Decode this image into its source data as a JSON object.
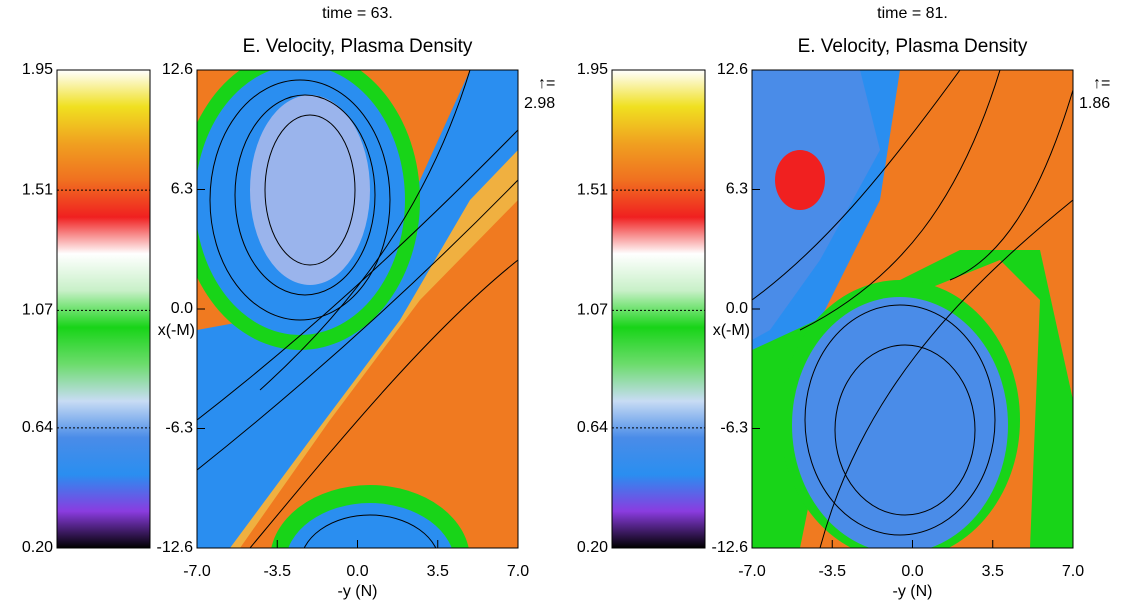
{
  "chart_data": [
    {
      "type": "heatmap",
      "title": "time =  63.",
      "subtitle": "E. Velocity, Plasma Density",
      "x_label": "-y (N)",
      "y_label": "x(-M)",
      "vector_label": "↑=",
      "vector_scale": "2.98",
      "xlim": [
        -7,
        7
      ],
      "ylim": [
        -12.6,
        12.6
      ],
      "xticks": [
        {
          "value": -7,
          "label": "-7.0"
        },
        -3.5,
        {
          "value": 0,
          "label": "0.0"
        },
        3.5,
        {
          "value": 7,
          "label": "7.0"
        }
      ],
      "yticks": [
        -12.6,
        -6.3,
        {
          "value": 0,
          "label": "0.0"
        },
        6.3,
        12.6
      ],
      "colorbar_lim": [
        0.2,
        1.95
      ],
      "colorbar_ticks": [
        {
          "value": 0.2,
          "label": "0.20"
        },
        0.64,
        1.07,
        1.51,
        1.95
      ],
      "colormap": [
        "#000000",
        "#8a3ce0",
        "#2a8ef0",
        "#4a8ce8",
        "#c8dcf4",
        "#6cdc6c",
        "#18d418",
        "#c8f0c8",
        "#ffffff",
        "#f02020",
        "#f07020",
        "#f0a020",
        "#f0e020",
        "#ffffff"
      ]
    },
    {
      "type": "heatmap",
      "title": "time =  81.",
      "subtitle": "E. Velocity, Plasma Density",
      "x_label": "-y (N)",
      "y_label": "x(-M)",
      "vector_label": "↑=",
      "vector_scale": "1.86",
      "xlim": [
        -7,
        7
      ],
      "ylim": [
        -12.6,
        12.6
      ],
      "xticks": [
        {
          "value": -7,
          "label": "-7.0"
        },
        -3.5,
        {
          "value": 0,
          "label": "0.0"
        },
        3.5,
        {
          "value": 7,
          "label": "7.0"
        }
      ],
      "yticks": [
        -12.6,
        -6.3,
        {
          "value": 0,
          "label": "0.0"
        },
        6.3,
        12.6
      ],
      "colorbar_lim": [
        0.2,
        1.95
      ],
      "colorbar_ticks": [
        {
          "value": 0.2,
          "label": "0.20"
        },
        0.64,
        1.07,
        1.51,
        1.95
      ],
      "colormap": [
        "#000000",
        "#8a3ce0",
        "#2a8ef0",
        "#4a8ce8",
        "#c8dcf4",
        "#6cdc6c",
        "#18d418",
        "#c8f0c8",
        "#ffffff",
        "#f02020",
        "#f07020",
        "#f0a020",
        "#f0e020",
        "#ffffff"
      ]
    }
  ]
}
